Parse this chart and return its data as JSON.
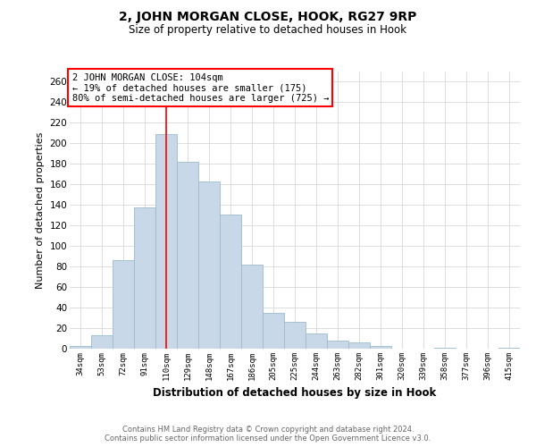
{
  "title": "2, JOHN MORGAN CLOSE, HOOK, RG27 9RP",
  "subtitle": "Size of property relative to detached houses in Hook",
  "xlabel": "Distribution of detached houses by size in Hook",
  "ylabel": "Number of detached properties",
  "bar_color": "#c8d8e8",
  "bar_edge_color": "#9bbccc",
  "bar_categories": [
    "34sqm",
    "53sqm",
    "72sqm",
    "91sqm",
    "110sqm",
    "129sqm",
    "148sqm",
    "167sqm",
    "186sqm",
    "205sqm",
    "225sqm",
    "244sqm",
    "263sqm",
    "282sqm",
    "301sqm",
    "320sqm",
    "339sqm",
    "358sqm",
    "377sqm",
    "396sqm",
    "415sqm"
  ],
  "bar_values": [
    3,
    13,
    86,
    138,
    209,
    182,
    163,
    131,
    82,
    35,
    26,
    15,
    8,
    6,
    3,
    0,
    0,
    1,
    0,
    0,
    1
  ],
  "ylim": [
    0,
    270
  ],
  "yticks": [
    0,
    20,
    40,
    60,
    80,
    100,
    120,
    140,
    160,
    180,
    200,
    220,
    240,
    260
  ],
  "redline_x": 4,
  "annotation_title": "2 JOHN MORGAN CLOSE: 104sqm",
  "annotation_line1": "← 19% of detached houses are smaller (175)",
  "annotation_line2": "80% of semi-detached houses are larger (725) →",
  "footer_line1": "Contains HM Land Registry data © Crown copyright and database right 2024.",
  "footer_line2": "Contains public sector information licensed under the Open Government Licence v3.0.",
  "background_color": "#ffffff",
  "grid_color": "#d8d8d8"
}
